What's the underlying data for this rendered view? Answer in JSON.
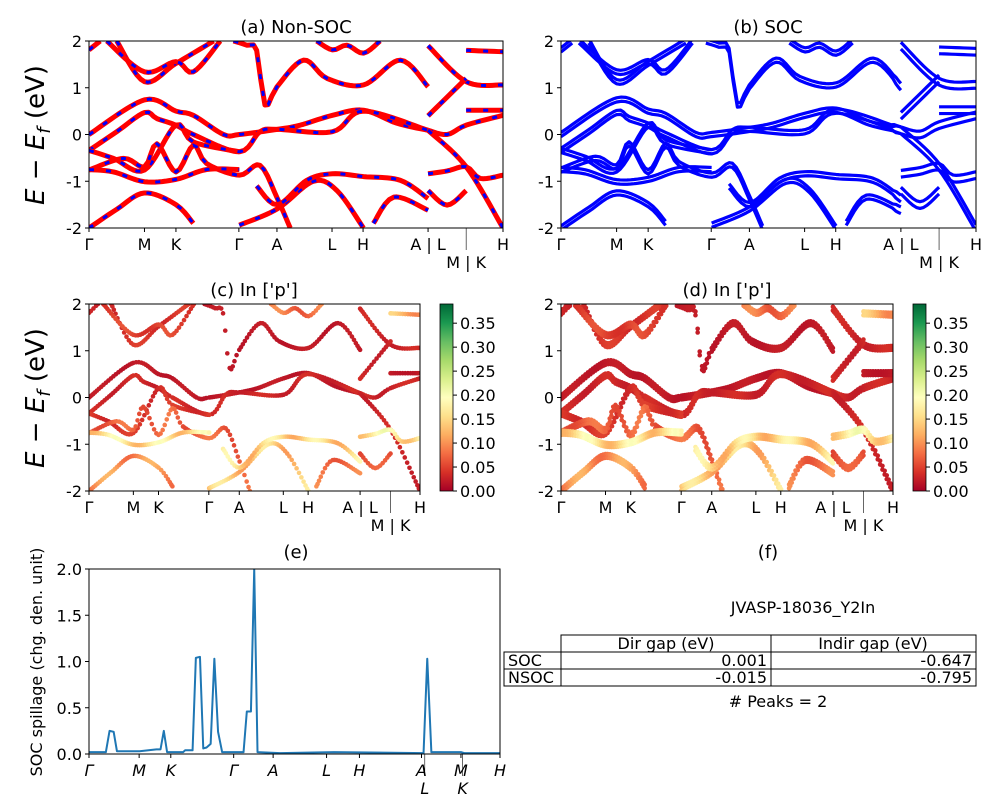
{
  "colors": {
    "nonsoc_line": "#ff0000",
    "nonsoc_dash": "#0000ff",
    "soc_line": "#0000ff",
    "spillage_line": "#1f77b4",
    "colormap": "RdYlGn"
  },
  "bands": [
    {
      "weight": 0.02,
      "points": [
        [
          0,
          0
        ],
        [
          0.134,
          0.74
        ],
        [
          0.21,
          0.5
        ],
        [
          0.252,
          0.41
        ],
        [
          0.325,
          0
        ],
        [
          0.363,
          0
        ],
        [
          0.455,
          0.11
        ],
        [
          0.51,
          0.2
        ],
        [
          0.588,
          0.41
        ],
        [
          0.663,
          0.52
        ],
        [
          0.744,
          0.24
        ],
        [
          0.819,
          0.09
        ]
      ]
    },
    {
      "weight": 0.03,
      "points": [
        [
          0,
          -0.34
        ],
        [
          0.067,
          0.06
        ],
        [
          0.134,
          0.47
        ],
        [
          0.164,
          0.34
        ],
        [
          0.21,
          0.2
        ],
        [
          0.252,
          0
        ],
        [
          0.363,
          -0.37
        ],
        [
          0.413,
          0.06
        ],
        [
          0.455,
          0.11
        ],
        [
          0.588,
          0.06
        ],
        [
          0.663,
          0.5
        ],
        [
          0.819,
          0.09
        ]
      ]
    },
    {
      "weight": 0.04,
      "points": [
        [
          0,
          -0.34
        ],
        [
          0.059,
          -0.51
        ],
        [
          0.134,
          -0.76
        ],
        [
          0.21,
          0.2
        ],
        [
          0.252,
          -0.16
        ],
        [
          0.363,
          -0.37
        ]
      ]
    },
    {
      "weight": 0.07,
      "points": [
        [
          0,
          -0.76
        ],
        [
          0.083,
          -0.51
        ],
        [
          0.134,
          -0.69
        ],
        [
          0.164,
          -0.2
        ],
        [
          0.21,
          -0.8
        ],
        [
          0.252,
          -0.23
        ],
        [
          0.284,
          -0.62
        ],
        [
          0.363,
          -0.87
        ],
        [
          0.413,
          -0.66
        ],
        [
          0.455,
          -1.37
        ],
        [
          0.486,
          -2
        ]
      ]
    },
    {
      "weight": 0.16,
      "points": [
        [
          0,
          -0.75
        ],
        [
          0.059,
          -0.8
        ],
        [
          0.134,
          -1.01
        ],
        [
          0.21,
          -0.96
        ],
        [
          0.284,
          -0.75
        ],
        [
          0.363,
          -0.75
        ]
      ]
    },
    {
      "weight": 0.1,
      "points": [
        [
          0,
          -2
        ],
        [
          0.067,
          -1.6
        ],
        [
          0.134,
          -1.25
        ],
        [
          0.21,
          -1.5
        ],
        [
          0.252,
          -1.9
        ]
      ]
    },
    {
      "weight": 0.14,
      "points": [
        [
          0.363,
          -1.94
        ],
        [
          0.455,
          -1.59
        ],
        [
          0.542,
          -1.0
        ],
        [
          0.599,
          -1.2
        ],
        [
          0.663,
          -2
        ]
      ]
    },
    {
      "weight": 0.15,
      "points": [
        [
          0.405,
          -1.1
        ],
        [
          0.455,
          -1.5
        ],
        [
          0.526,
          -0.98
        ],
        [
          0.588,
          -0.84
        ],
        [
          0.663,
          -0.9
        ],
        [
          0.752,
          -0.98
        ],
        [
          0.819,
          -1.37
        ]
      ]
    },
    {
      "weight": 0.08,
      "points": [
        [
          0.687,
          -1.9
        ],
        [
          0.736,
          -1.34
        ],
        [
          0.819,
          -1.62
        ]
      ]
    },
    {
      "weight": 0.03,
      "points": [
        [
          0,
          1.81
        ],
        [
          0.027,
          2
        ]
      ]
    },
    {
      "weight": 0.04,
      "points": [
        [
          0.067,
          2
        ],
        [
          0.134,
          1.13
        ],
        [
          0.21,
          1.52
        ],
        [
          0.301,
          2
        ]
      ]
    },
    {
      "weight": 0.05,
      "points": [
        [
          0.043,
          2
        ],
        [
          0.134,
          1.34
        ],
        [
          0.21,
          1.56
        ],
        [
          0.252,
          1.34
        ],
        [
          0.317,
          2
        ]
      ]
    },
    {
      "weight": 0.02,
      "points": [
        [
          0.349,
          2
        ],
        [
          0.381,
          1.91
        ],
        [
          0.405,
          1.8
        ],
        [
          0.425,
          0.63
        ],
        [
          0.454,
          1.02
        ],
        [
          0.518,
          1.59
        ],
        [
          0.575,
          1.2
        ],
        [
          0.663,
          1.06
        ],
        [
          0.752,
          1.59
        ],
        [
          0.819,
          1.02
        ]
      ]
    },
    {
      "weight": 0.08,
      "points": [
        [
          0.55,
          2
        ],
        [
          0.588,
          1.81
        ],
        [
          0.623,
          1.91
        ],
        [
          0.663,
          1.74
        ],
        [
          0.703,
          2
        ]
      ]
    },
    {
      "weight": 0.03,
      "points": [
        [
          0.819,
          0.09
        ],
        [
          0.865,
          0
        ],
        [
          0.911,
          0.2
        ],
        [
          1,
          0.41
        ]
      ]
    },
    {
      "weight": 0.02,
      "points": [
        [
          0.911,
          0.52
        ],
        [
          1,
          0.52
        ]
      ]
    },
    {
      "weight": 0.03,
      "points": [
        [
          0.819,
          0.09
        ],
        [
          0.911,
          -0.69
        ],
        [
          1,
          -2
        ]
      ]
    },
    {
      "weight": 0.17,
      "points": [
        [
          0.819,
          -0.84
        ],
        [
          0.865,
          -0.78
        ],
        [
          0.911,
          -0.69
        ],
        [
          0.945,
          -0.94
        ],
        [
          1,
          -0.87
        ]
      ]
    },
    {
      "weight": 0.06,
      "points": [
        [
          0.819,
          -1.2
        ],
        [
          0.865,
          -1.51
        ],
        [
          0.911,
          -1.2
        ]
      ]
    },
    {
      "weight": 0.03,
      "points": [
        [
          0.819,
          1.9
        ],
        [
          0.911,
          1.13
        ],
        [
          1,
          1.06
        ]
      ]
    },
    {
      "weight": 0.12,
      "points": [
        [
          0.911,
          1.8
        ],
        [
          1,
          1.77
        ]
      ]
    },
    {
      "weight": 0.03,
      "points": [
        [
          0.819,
          0.4
        ],
        [
          0.911,
          1.2
        ]
      ]
    }
  ],
  "chart_data": [
    {
      "panel": "a",
      "type": "line",
      "title": "(a) Non-SOC",
      "ylabel": {
        "e1": "E",
        "minus": " − ",
        "e2": "E",
        "sub": "f",
        "unit": " (eV)"
      },
      "ylim": [
        -2,
        2
      ],
      "yticks": [
        "-2",
        "-1",
        "0",
        "1",
        "2"
      ],
      "xticks": {
        "positions": [
          0,
          0.134,
          0.21,
          0.362,
          0.454,
          0.587,
          0.662,
          0.819,
          0.911,
          1
        ],
        "labels": [
          "Γ",
          "M",
          "K",
          "Γ",
          "A",
          "L",
          "H",
          "A | L",
          "M | K",
          "H"
        ]
      },
      "series_source": "bands"
    },
    {
      "panel": "b",
      "type": "line",
      "title": "(b) SOC",
      "ylim": [
        -2,
        2
      ],
      "yticks": [
        "-2",
        "-1",
        "0",
        "1",
        "2"
      ],
      "xticks": {
        "positions": [
          0,
          0.134,
          0.21,
          0.362,
          0.454,
          0.587,
          0.662,
          0.819,
          0.911,
          1
        ],
        "labels": [
          "Γ",
          "M",
          "K",
          "Γ",
          "A",
          "L",
          "H",
          "A | L",
          "M | K",
          "H"
        ]
      },
      "series_source": "bands"
    },
    {
      "panel": "c",
      "type": "scatter",
      "title": "(c)  In ['p']",
      "ylabel": {
        "e1": "E",
        "minus": " − ",
        "e2": "E",
        "sub": "f",
        "unit": " (eV)"
      },
      "ylim": [
        -2,
        2
      ],
      "yticks": [
        "-2",
        "-1",
        "0",
        "1",
        "2"
      ],
      "xticks": {
        "positions": [
          0,
          0.134,
          0.21,
          0.362,
          0.454,
          0.587,
          0.662,
          0.819,
          0.911,
          1
        ],
        "labels": [
          "Γ",
          "M",
          "K",
          "Γ",
          "A",
          "L",
          "H",
          "A | L",
          "M | K",
          "H"
        ]
      },
      "colorbar": {
        "range": [
          0,
          0.39
        ],
        "ticks": [
          "0.00",
          "0.05",
          "0.10",
          "0.15",
          "0.20",
          "0.25",
          "0.30",
          "0.35"
        ]
      },
      "series_source": "bands"
    },
    {
      "panel": "d",
      "type": "scatter",
      "title": "(d) In ['p']",
      "ylim": [
        -2,
        2
      ],
      "yticks": [
        "-2",
        "-1",
        "0",
        "1",
        "2"
      ],
      "xticks": {
        "positions": [
          0,
          0.134,
          0.21,
          0.362,
          0.454,
          0.587,
          0.662,
          0.819,
          0.911,
          1
        ],
        "labels": [
          "Γ",
          "M",
          "K",
          "Γ",
          "A",
          "L",
          "H",
          "A | L",
          "M | K",
          "H"
        ]
      },
      "colorbar": {
        "range": [
          0,
          0.39
        ],
        "ticks": [
          "0.00",
          "0.05",
          "0.10",
          "0.15",
          "0.20",
          "0.25",
          "0.30",
          "0.35"
        ]
      },
      "series_source": "bands"
    },
    {
      "panel": "e",
      "type": "line",
      "title": "(e)",
      "ylabel": "SOC spillage (chg. den. unit)",
      "ylim": [
        0,
        2.0
      ],
      "yticks": [
        "0.0",
        "0.5",
        "1.0",
        "1.5",
        "2.0"
      ],
      "xticks": {
        "positions": [
          0,
          0.122,
          0.199,
          0.352,
          0.448,
          0.578,
          0.658,
          0.809,
          0.817,
          0.905,
          0.909,
          1
        ],
        "labels": [
          "Γ",
          "M",
          "K",
          "Γ",
          "A",
          "L",
          "H",
          "A",
          "L",
          "M",
          "K",
          "H"
        ]
      },
      "x": [
        0,
        0.041,
        0.05,
        0.06,
        0.068,
        0.123,
        0.164,
        0.174,
        0.182,
        0.19,
        0.229,
        0.234,
        0.252,
        0.26,
        0.27,
        0.278,
        0.286,
        0.296,
        0.305,
        0.314,
        0.324,
        0.376,
        0.384,
        0.394,
        0.402,
        0.41,
        0.465,
        0.596,
        0.814,
        0.823,
        0.833,
        0.905,
        0.913,
        1
      ],
      "y": [
        0.02,
        0.02,
        0.25,
        0.24,
        0.03,
        0.03,
        0.05,
        0.05,
        0.25,
        0.02,
        0.02,
        0.04,
        0.04,
        1.04,
        1.05,
        0.06,
        0.07,
        0.11,
        1.03,
        0.24,
        0.02,
        0.02,
        0.46,
        0.46,
        2.0,
        0.02,
        0.01,
        0.02,
        0.01,
        1.03,
        0.02,
        0.02,
        0.01,
        0.01
      ]
    }
  ],
  "table": {
    "panel_title": "(f)",
    "material": "JVASP-18036_Y2In",
    "columns": [
      "",
      "Dir gap (eV)",
      "Indir gap (eV)"
    ],
    "rows": [
      {
        "label": "SOC",
        "dir": "0.001",
        "indir": "-0.647"
      },
      {
        "label": "NSOC",
        "dir": "-0.015",
        "indir": "-0.795"
      }
    ],
    "peaks": "# Peaks = 2"
  }
}
